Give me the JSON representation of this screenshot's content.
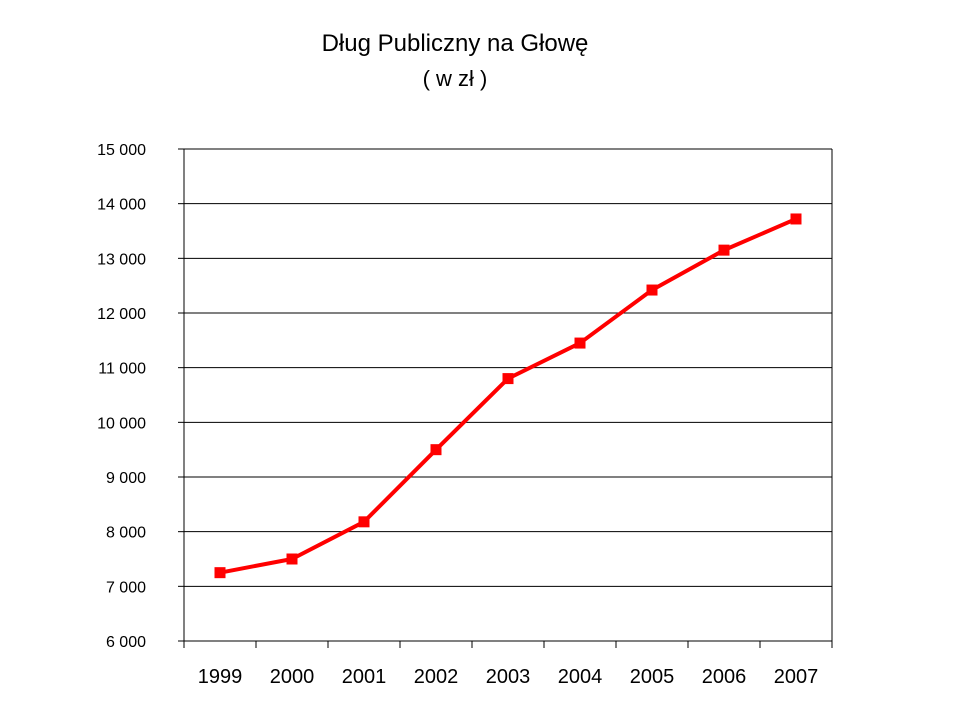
{
  "chart_data": {
    "type": "line",
    "title": "Dług Publiczny na Głowę",
    "subtitle": "( w zł )",
    "xlabel": "",
    "ylabel": "",
    "categories": [
      "1999",
      "2000",
      "2001",
      "2002",
      "2003",
      "2004",
      "2005",
      "2006",
      "2007"
    ],
    "series": [
      {
        "values": [
          7250,
          7500,
          8180,
          9500,
          10800,
          11450,
          12420,
          13150,
          13720
        ]
      }
    ],
    "ylim": [
      6000,
      15000
    ],
    "y_ticks": [
      6000,
      7000,
      8000,
      9000,
      10000,
      11000,
      12000,
      13000,
      14000,
      15000
    ],
    "y_tick_labels": [
      "6 000",
      "7 000",
      "8 000",
      "9 000",
      "10 000",
      "11 000",
      "12 000",
      "13 000",
      "14 000",
      "15 000"
    ],
    "grid": true,
    "legend": "none",
    "colors": {
      "line": "#ff0000",
      "marker": "#ff0000",
      "grid": "#000000"
    }
  }
}
